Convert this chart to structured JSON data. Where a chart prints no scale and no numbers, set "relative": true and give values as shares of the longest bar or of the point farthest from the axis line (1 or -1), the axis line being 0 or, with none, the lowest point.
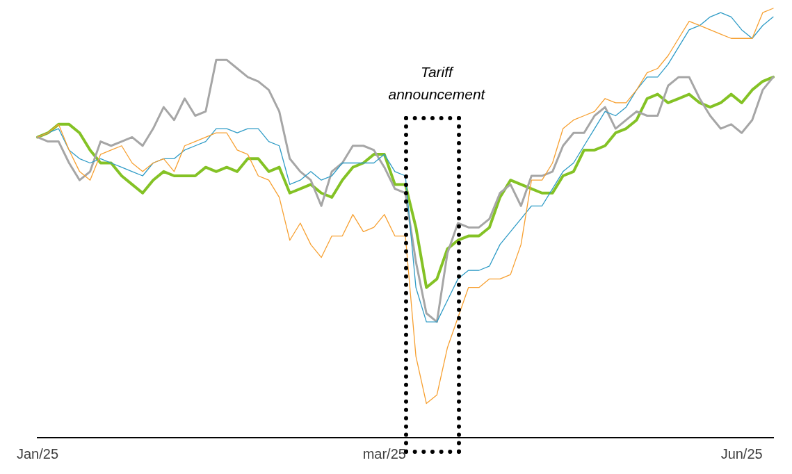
{
  "chart_data": {
    "type": "line",
    "relative": true,
    "marker": "none",
    "legend": false,
    "grid": false,
    "annotations": [
      "Tariff announcement"
    ],
    "categories": [
      "Jan/25",
      null,
      null,
      null,
      null,
      null,
      null,
      null,
      null,
      null,
      null,
      null,
      null,
      null,
      null,
      null,
      null,
      null,
      null,
      null,
      null,
      null,
      null,
      null,
      null,
      null,
      null,
      null,
      null,
      null,
      null,
      null,
      null,
      "mar/25",
      null,
      null,
      null,
      null,
      null,
      null,
      null,
      null,
      null,
      null,
      null,
      null,
      null,
      null,
      null,
      null,
      null,
      null,
      null,
      null,
      null,
      null,
      null,
      null,
      null,
      null,
      null,
      null,
      null,
      null,
      null,
      null,
      null,
      "Jun/25",
      null,
      null,
      null
    ],
    "series": [
      {
        "color": "#f7a031",
        "values": [
          0.7,
          0.71,
          0.73,
          0.67,
          0.62,
          0.6,
          0.66,
          0.67,
          0.68,
          0.64,
          0.62,
          0.64,
          0.65,
          0.62,
          0.68,
          0.69,
          0.7,
          0.71,
          0.71,
          0.67,
          0.66,
          0.61,
          0.6,
          0.56,
          0.46,
          0.5,
          0.45,
          0.42,
          0.47,
          0.47,
          0.52,
          0.48,
          0.49,
          0.52,
          0.47,
          0.47,
          0.19,
          0.08,
          0.1,
          0.21,
          0.28,
          0.35,
          0.35,
          0.37,
          0.37,
          0.38,
          0.45,
          0.6,
          0.6,
          0.64,
          0.72,
          0.74,
          0.75,
          0.76,
          0.79,
          0.78,
          0.78,
          0.81,
          0.85,
          0.86,
          0.89,
          0.93,
          0.97,
          0.96,
          0.95,
          0.94,
          0.93,
          0.93,
          0.93,
          0.99,
          1.0
        ]
      },
      {
        "color": "#2e9bc6",
        "values": [
          0.7,
          0.71,
          0.72,
          0.67,
          0.65,
          0.64,
          0.65,
          0.64,
          0.63,
          0.62,
          0.61,
          0.64,
          0.65,
          0.65,
          0.67,
          0.68,
          0.69,
          0.72,
          0.72,
          0.71,
          0.72,
          0.72,
          0.69,
          0.68,
          0.59,
          0.6,
          0.62,
          0.6,
          0.61,
          0.64,
          0.64,
          0.64,
          0.64,
          0.66,
          0.62,
          0.61,
          0.35,
          0.27,
          0.27,
          0.32,
          0.37,
          0.39,
          0.39,
          0.4,
          0.45,
          0.48,
          0.51,
          0.54,
          0.54,
          0.58,
          0.62,
          0.64,
          0.68,
          0.72,
          0.76,
          0.75,
          0.77,
          0.81,
          0.84,
          0.84,
          0.87,
          0.91,
          0.95,
          0.96,
          0.98,
          0.99,
          0.98,
          0.95,
          0.93,
          0.96,
          0.98
        ]
      },
      {
        "color": "#a6a6a6",
        "values": [
          0.7,
          0.69,
          0.69,
          0.64,
          0.6,
          0.62,
          0.69,
          0.68,
          0.69,
          0.7,
          0.68,
          0.72,
          0.77,
          0.74,
          0.79,
          0.75,
          0.76,
          0.88,
          0.88,
          0.86,
          0.84,
          0.83,
          0.81,
          0.76,
          0.65,
          0.62,
          0.6,
          0.54,
          0.62,
          0.64,
          0.68,
          0.68,
          0.67,
          0.63,
          0.58,
          0.57,
          0.41,
          0.29,
          0.27,
          0.43,
          0.5,
          0.49,
          0.49,
          0.51,
          0.57,
          0.59,
          0.54,
          0.61,
          0.61,
          0.62,
          0.68,
          0.71,
          0.71,
          0.75,
          0.77,
          0.72,
          0.74,
          0.76,
          0.75,
          0.75,
          0.82,
          0.84,
          0.84,
          0.79,
          0.75,
          0.72,
          0.73,
          0.71,
          0.74,
          0.81,
          0.84
        ]
      },
      {
        "color": "#84c225",
        "values": [
          0.7,
          0.71,
          0.73,
          0.73,
          0.71,
          0.67,
          0.64,
          0.64,
          0.61,
          0.59,
          0.57,
          0.6,
          0.62,
          0.61,
          0.61,
          0.61,
          0.63,
          0.62,
          0.63,
          0.62,
          0.65,
          0.65,
          0.62,
          0.63,
          0.57,
          0.58,
          0.59,
          0.57,
          0.56,
          0.6,
          0.63,
          0.64,
          0.66,
          0.66,
          0.59,
          0.59,
          0.49,
          0.35,
          0.37,
          0.44,
          0.46,
          0.47,
          0.47,
          0.49,
          0.56,
          0.6,
          0.59,
          0.58,
          0.57,
          0.57,
          0.61,
          0.62,
          0.67,
          0.67,
          0.68,
          0.71,
          0.72,
          0.74,
          0.79,
          0.8,
          0.78,
          0.79,
          0.8,
          0.78,
          0.77,
          0.78,
          0.8,
          0.78,
          0.81,
          0.83,
          0.84
        ]
      }
    ]
  }
}
